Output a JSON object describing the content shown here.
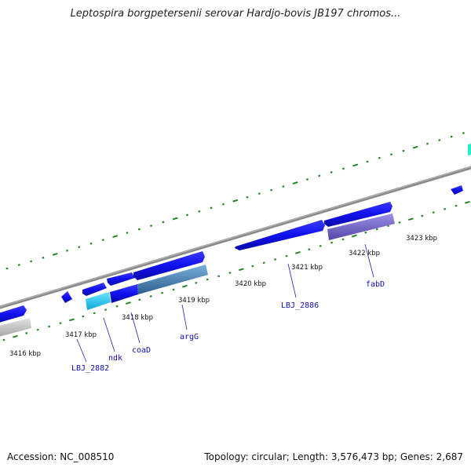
{
  "title": "Leptospira borgpetersenii serovar Hardjo-bovis JB197 chromos...",
  "footer": {
    "accession": "Accession: NC_008510",
    "stats": "Topology: circular; Length: 3,576,473 bp; Genes: 2,687"
  },
  "kbp_labels": [
    "3416 kbp",
    "3417 kbp",
    "3418 kbp",
    "3419 kbp",
    "3420 kbp",
    "3421 kbp",
    "3422 kbp",
    "3423 kbp"
  ],
  "gene_labels": [
    "LBJ_2882",
    "ndk",
    "coaD",
    "argG",
    "LBJ_2886",
    "fabD"
  ],
  "colors": {
    "gene_blue": "#1a1aee",
    "cyan": "#22c8ee",
    "steel": "#4a82b8",
    "lavender": "#7a6ccc",
    "gray": "#bdbdbd",
    "tick_green": "#228822",
    "backbone": "#8a8a8a"
  }
}
